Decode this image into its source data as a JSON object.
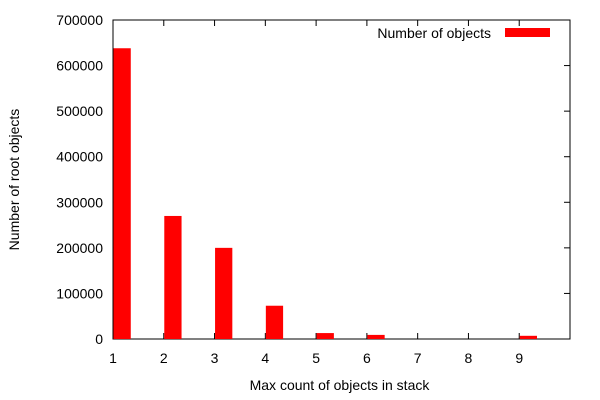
{
  "chart_data": {
    "type": "bar",
    "title": "",
    "xlabel": "Max count of objects in stack",
    "ylabel": "Number of root objects",
    "x": [
      1,
      2,
      3,
      4,
      5,
      6,
      7,
      8,
      9
    ],
    "xlim": [
      1,
      10
    ],
    "ylim": [
      0,
      700000
    ],
    "xticks": [
      "1",
      "2",
      "3",
      "4",
      "5",
      "6",
      "7",
      "8",
      "9"
    ],
    "yticks": [
      "0",
      "100000",
      "200000",
      "300000",
      "400000",
      "500000",
      "600000",
      "700000"
    ],
    "series": [
      {
        "name": "Number of objects",
        "color": "#ff0000",
        "values": [
          638000,
          270000,
          200000,
          73000,
          13000,
          9000,
          0,
          0,
          7000
        ]
      }
    ],
    "legend": "top-right",
    "grid": false
  }
}
